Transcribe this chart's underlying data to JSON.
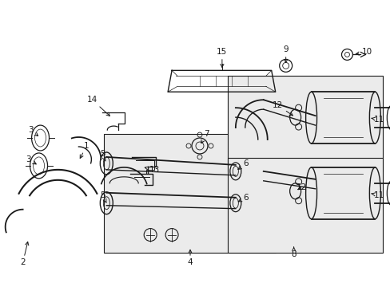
{
  "bg_color": "#ffffff",
  "line_color": "#1a1a1a",
  "box_fill": "#ebebeb",
  "fig_width": 4.89,
  "fig_height": 3.6,
  "dpi": 100
}
